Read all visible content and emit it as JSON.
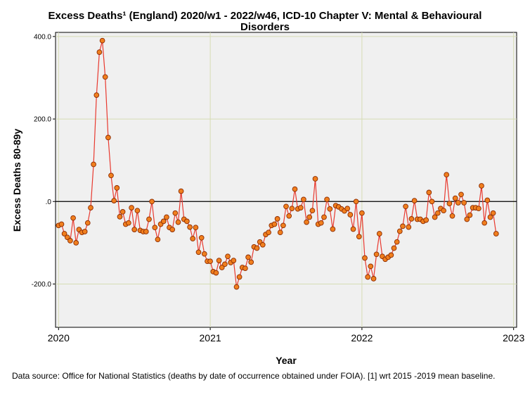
{
  "chart_data": {
    "type": "line",
    "title": "Excess Deaths¹ (England) 2020/w1 - 2022/w46, ICD-10 Chapter V: Mental & Behavioural Disorders",
    "title_lines": [
      "Excess Deaths¹ (England) 2020/w1 - 2022/w46, ICD-10 Chapter V: Mental & Behavioural",
      "Disorders"
    ],
    "xlabel": "Year",
    "ylabel": "Excess Deaths 80-89y",
    "xlim": [
      2019.98,
      2023.02
    ],
    "ylim": [
      -305,
      410
    ],
    "x_ticks": [
      {
        "value": 2020,
        "label": "2020"
      },
      {
        "value": 2021,
        "label": "2021"
      },
      {
        "value": 2022,
        "label": "2022"
      },
      {
        "value": 2023,
        "label": "2023"
      }
    ],
    "y_ticks": [
      {
        "value": 400,
        "label": "400.0"
      },
      {
        "value": 200,
        "label": "200.0"
      },
      {
        "value": 0,
        "label": ".0"
      },
      {
        "value": -200,
        "label": "-200.0"
      }
    ],
    "reference_line": 0,
    "grid": true,
    "series": [
      {
        "name": "Excess deaths",
        "x_start": 2020.0,
        "x_step": 0.019231,
        "values": [
          -58,
          -55,
          -78,
          -87,
          -95,
          -40,
          -100,
          -68,
          -75,
          -73,
          -52,
          -15,
          90,
          258,
          362,
          390,
          302,
          155,
          63,
          2,
          33,
          -37,
          -25,
          -55,
          -52,
          -15,
          -68,
          -22,
          -70,
          -73,
          -73,
          -43,
          0,
          -63,
          -92,
          -55,
          -48,
          -38,
          -63,
          -68,
          -28,
          -50,
          25,
          -43,
          -48,
          -62,
          -90,
          -63,
          -123,
          -88,
          -127,
          -145,
          -145,
          -170,
          -173,
          -143,
          -160,
          -152,
          -133,
          -148,
          -143,
          -207,
          -183,
          -160,
          -162,
          -135,
          -147,
          -110,
          -113,
          -98,
          -105,
          -80,
          -75,
          -58,
          -55,
          -42,
          -75,
          -58,
          -12,
          -35,
          -17,
          30,
          -18,
          -15,
          5,
          -50,
          -38,
          -22,
          55,
          -55,
          -52,
          -38,
          5,
          -18,
          -67,
          -10,
          -13,
          -18,
          -23,
          -17,
          -32,
          -67,
          0,
          -85,
          -28,
          -137,
          -183,
          -157,
          -187,
          -128,
          -78,
          -133,
          -140,
          -135,
          -130,
          -113,
          -98,
          -72,
          -60,
          -12,
          -62,
          -42,
          2,
          -43,
          -43,
          -48,
          -45,
          22,
          0,
          -38,
          -28,
          -17,
          -22,
          65,
          -5,
          -35,
          8,
          -3,
          17,
          -3,
          -43,
          -33,
          -15,
          -15,
          -17,
          38,
          -52,
          3,
          -38,
          -28,
          -78
        ]
      }
    ]
  },
  "footnote": "Data source: Office for National Statistics (deaths by date of occurrence obtained under FOIA). [1] wrt 2015 -2019 mean baseline.",
  "colors": {
    "line": "#e8392f",
    "marker_fill": "#f07f1e",
    "marker_stroke": "#8b2a00",
    "plot_bg": "#f0f0f0",
    "grid": "#d6dcb4"
  }
}
